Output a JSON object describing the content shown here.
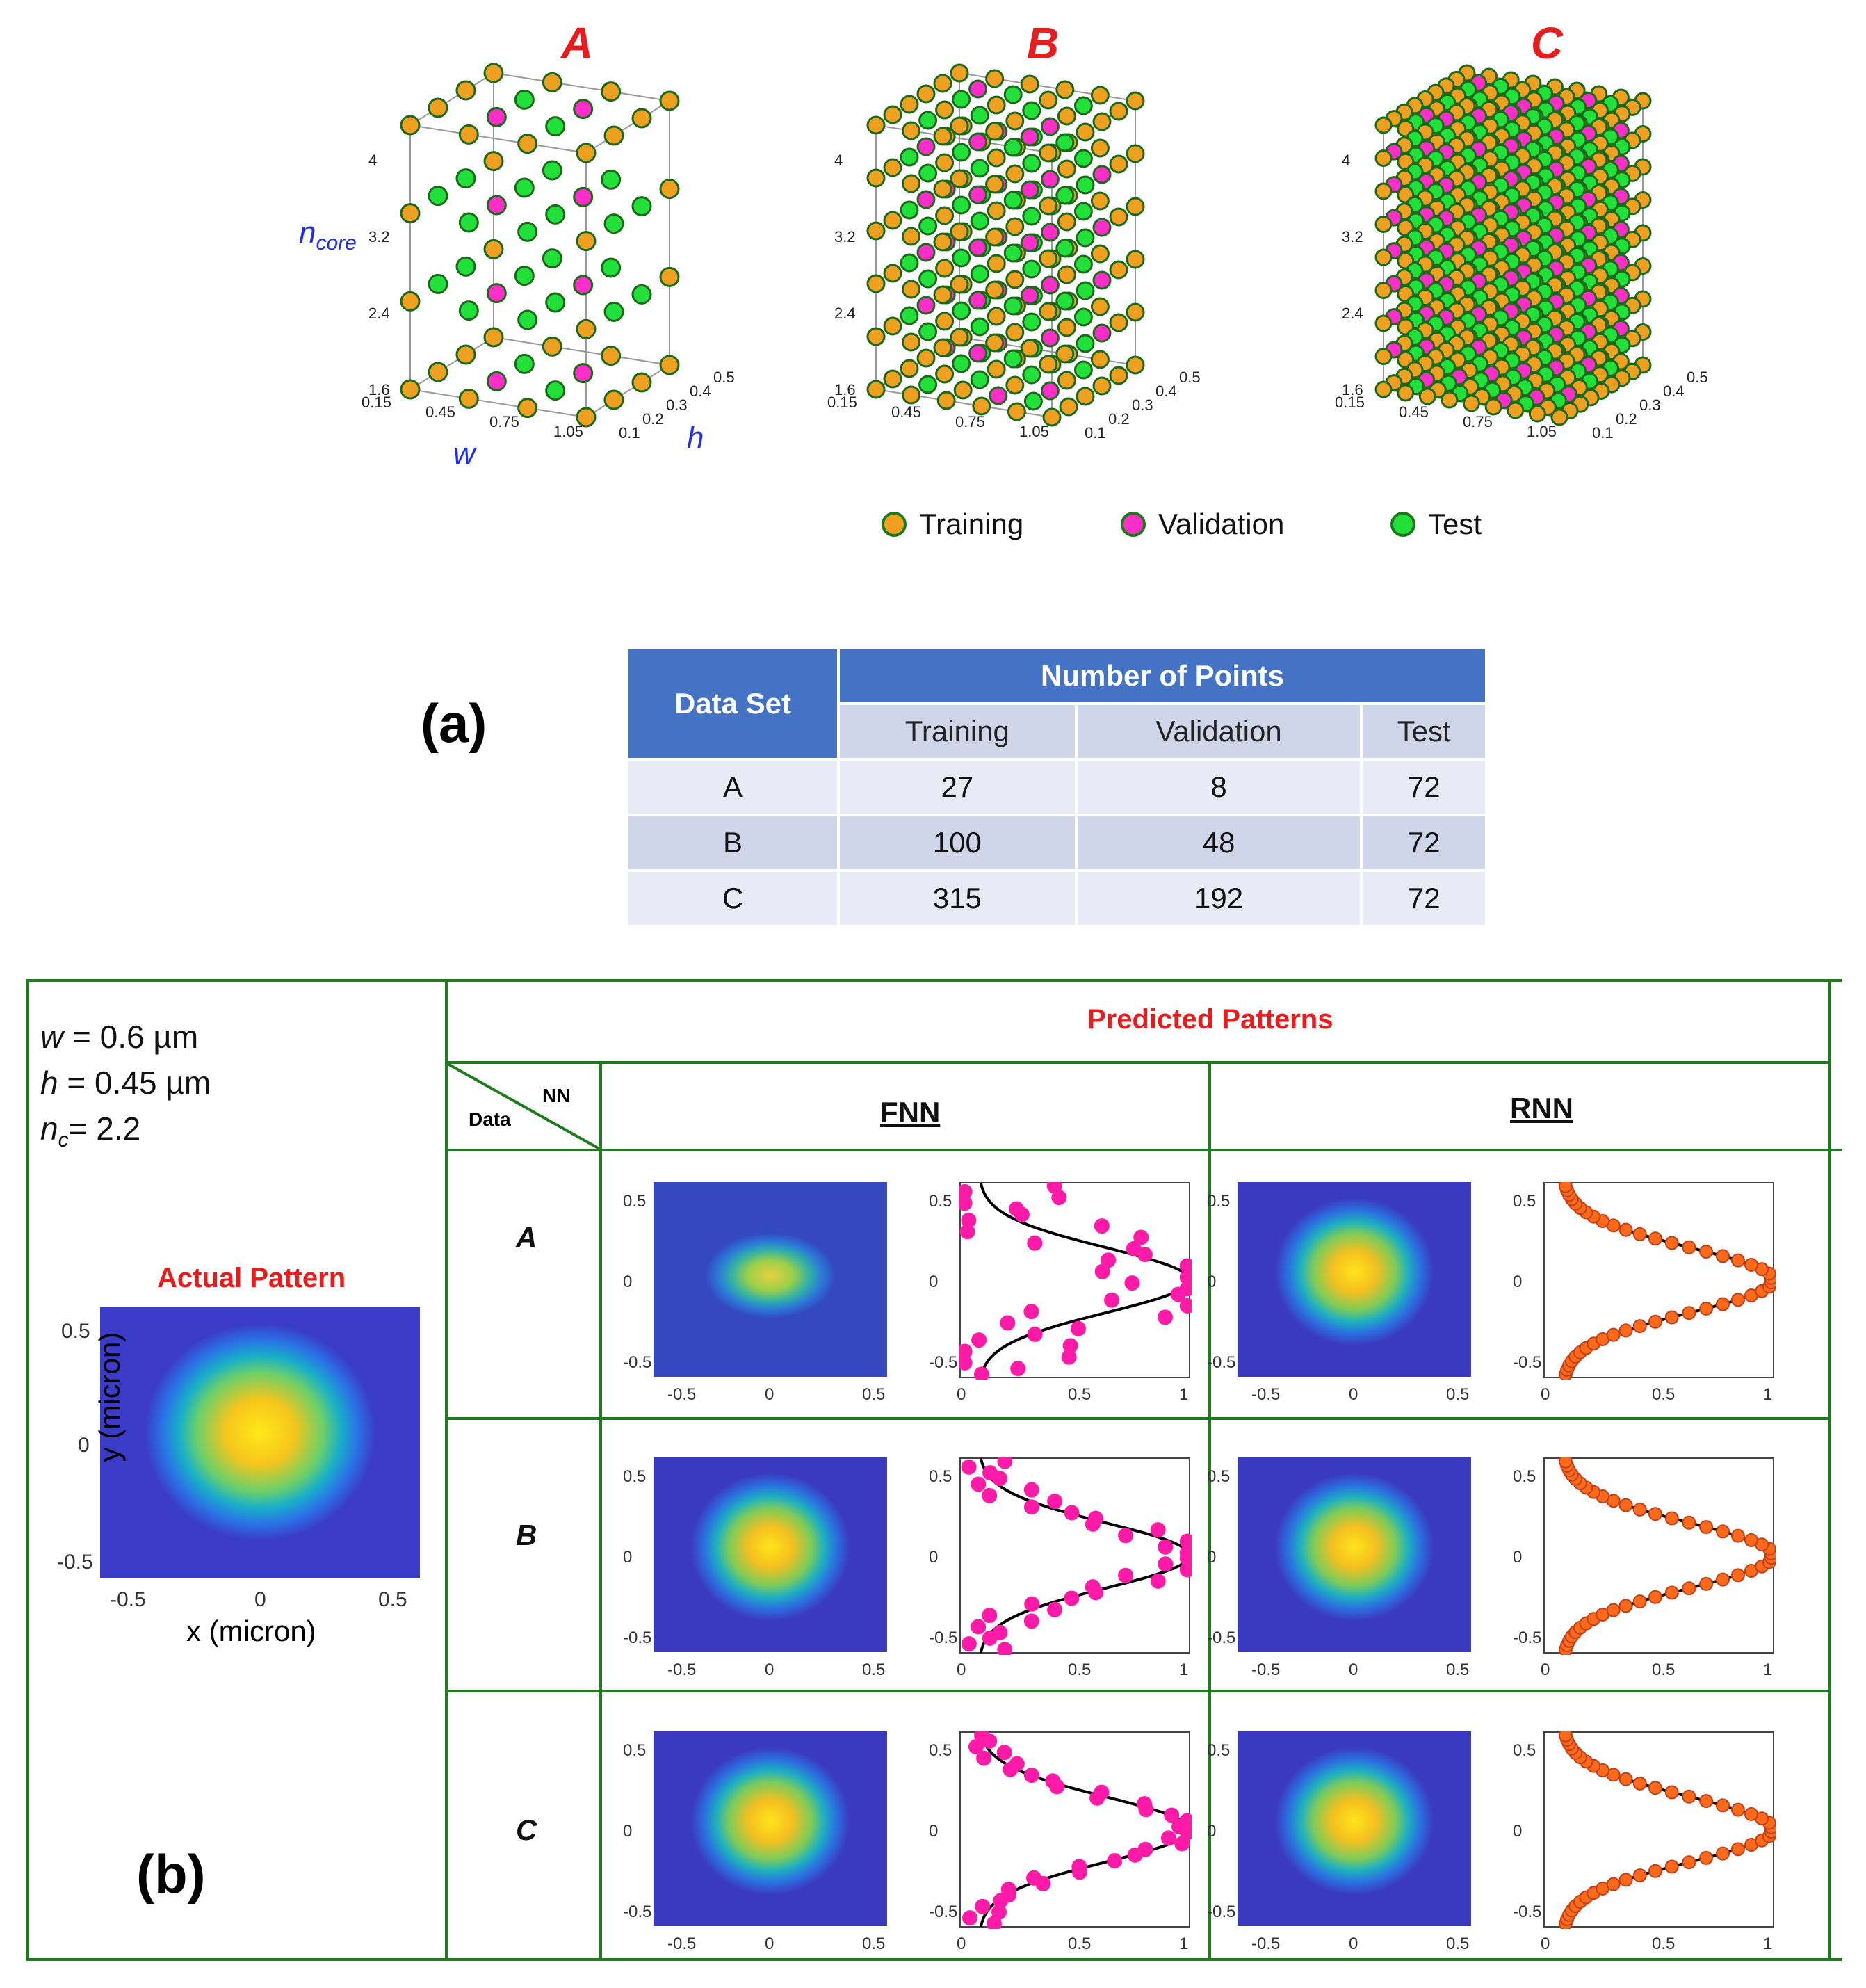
{
  "panel_a": {
    "label": "(a)",
    "cubes": [
      {
        "title": "A"
      },
      {
        "title": "B"
      },
      {
        "title": "C"
      }
    ],
    "axis": {
      "ncore_label": "n",
      "ncore_sub": "core",
      "w_label": "w",
      "h_label": "h",
      "ncore_ticks": [
        "4",
        "3.2",
        "2.4",
        "1.6"
      ],
      "w_ticks": [
        "0.15",
        "0.45",
        "0.75",
        "1.05"
      ],
      "h_ticks": [
        "0.1",
        "0.2",
        "0.3",
        "0.4",
        "0.5"
      ]
    },
    "legend": [
      {
        "label": "Training",
        "color": "#f0a020"
      },
      {
        "label": "Validation",
        "color": "#ff2ec8"
      },
      {
        "label": "Test",
        "color": "#22e03a"
      }
    ],
    "table": {
      "col_dataset": "Data Set",
      "col_group": "Number of Points",
      "subcols": [
        "Training",
        "Validation",
        "Test"
      ],
      "rows": [
        {
          "set": "A",
          "training": "27",
          "validation": "8",
          "test": "72"
        },
        {
          "set": "B",
          "training": "100",
          "validation": "48",
          "test": "72"
        },
        {
          "set": "C",
          "training": "315",
          "validation": "192",
          "test": "72"
        }
      ]
    }
  },
  "panel_b": {
    "label": "(b)",
    "params": {
      "w_sym": "w",
      "w_val": " = 0.6 µm",
      "h_sym": "h",
      "h_val": " = 0.45 µm",
      "n_sym": "n",
      "n_sub": "c",
      "n_val": "= 2.2"
    },
    "actual_title": "Actual Pattern",
    "actual_xlabel": "x (micron)",
    "actual_ylabel": "y (micron)",
    "actual_ticks": [
      "0.5",
      "0",
      "-0.5"
    ],
    "actual_xticks": [
      "-0.5",
      "0",
      "0.5"
    ],
    "predicted_title": "Predicted Patterns",
    "corner_nn": "NN",
    "corner_data": "Data",
    "col_fnn": "FNN",
    "col_rnn": "RNN",
    "rows": [
      "A",
      "B",
      "C"
    ],
    "heat_yticks": [
      "0.5",
      "0",
      "-0.5"
    ],
    "heat_xticks": [
      "-0.5",
      "0",
      "0.5"
    ],
    "prof_xticks": [
      "0",
      "0.5",
      "1"
    ],
    "colors": {
      "fnn_marker": "#ff1aa8",
      "rnn_marker": "#ff6a1a",
      "grid": "#1e7b1e"
    }
  }
}
